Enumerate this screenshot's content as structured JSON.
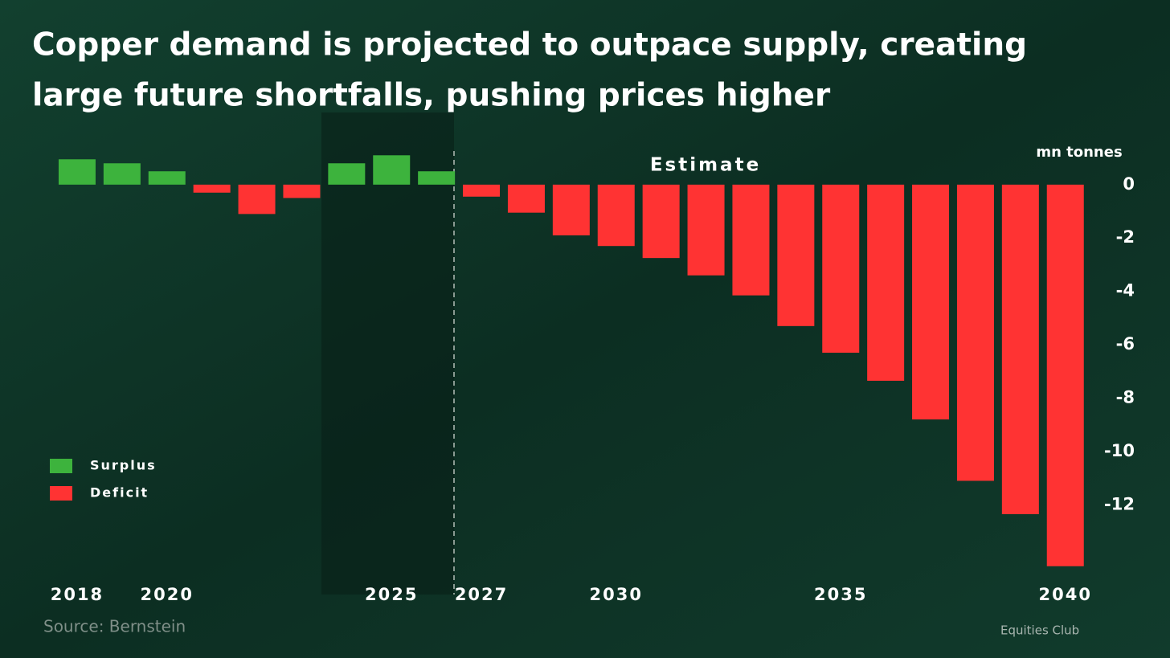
{
  "chart_data": {
    "type": "bar",
    "title": [
      "Copper demand is projected to outpace supply, creating",
      "large future shortfalls, pushing prices higher"
    ],
    "y_axis_label": "mn tonnes",
    "annotation": "Estimate",
    "source": "Source: Bernstein",
    "brand": "Equities Club",
    "categories": [
      "2018",
      null,
      "2020",
      null,
      null,
      null,
      null,
      "2025",
      null,
      "2027",
      null,
      null,
      "2030",
      null,
      null,
      null,
      null,
      "2035",
      null,
      null,
      null,
      null,
      "2040"
    ],
    "series": [
      {
        "name": "Surplus",
        "color": "#3db33d",
        "values": [
          0.95,
          0.8,
          0.5,
          null,
          null,
          null,
          0.8,
          1.1,
          0.5,
          null,
          null,
          null,
          null,
          null,
          null,
          null,
          null,
          null,
          null,
          null,
          null,
          null,
          null
        ]
      },
      {
        "name": "Deficit",
        "color": "#ff3333",
        "values": [
          null,
          null,
          null,
          -0.3,
          -1.1,
          -0.5,
          null,
          null,
          null,
          -0.45,
          -1.05,
          -1.9,
          -2.3,
          -2.75,
          -3.4,
          -4.15,
          -5.3,
          -6.3,
          -7.35,
          -8.8,
          -11.1,
          -12.35,
          -14.3
        ]
      }
    ],
    "ylim": [
      -15,
      1.5
    ],
    "yticks": [
      0,
      -2,
      -4,
      -6,
      -8,
      -10,
      -12
    ],
    "grid": false,
    "legend": "left"
  }
}
